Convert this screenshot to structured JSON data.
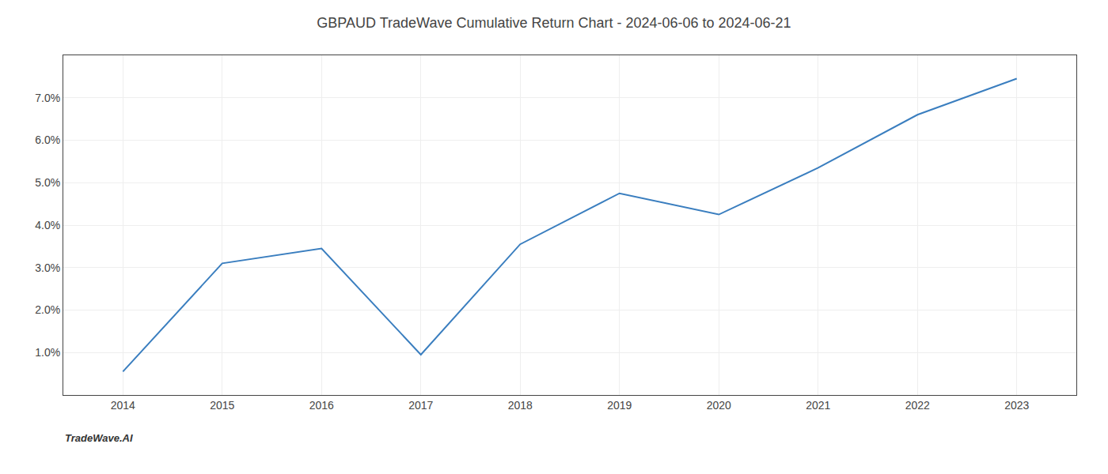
{
  "chart_data": {
    "type": "line",
    "title": "GBPAUD TradeWave Cumulative Return Chart - 2024-06-06 to 2024-06-21",
    "annotations": [
      "TradeWave.AI"
    ],
    "x": [
      2014,
      2015,
      2016,
      2017,
      2018,
      2019,
      2020,
      2021,
      2022,
      2023
    ],
    "values": [
      0.55,
      3.1,
      3.45,
      0.95,
      3.55,
      4.75,
      4.25,
      5.35,
      6.6,
      7.45
    ],
    "color": "#3a7ebf",
    "xlim": [
      2013.4,
      2023.6
    ],
    "xticks": [
      2014,
      2015,
      2016,
      2017,
      2018,
      2019,
      2020,
      2021,
      2022,
      2023
    ],
    "ylim": [
      0.0,
      8.0
    ],
    "yticks": [
      {
        "value": 1.0,
        "label": "1.0%"
      },
      {
        "value": 2.0,
        "label": "2.0%"
      },
      {
        "value": 3.0,
        "label": "3.0%"
      },
      {
        "value": 4.0,
        "label": "4.0%"
      },
      {
        "value": 5.0,
        "label": "5.0%"
      },
      {
        "value": 6.0,
        "label": "6.0%"
      },
      {
        "value": 7.0,
        "label": "7.0%"
      }
    ],
    "grid": true
  }
}
